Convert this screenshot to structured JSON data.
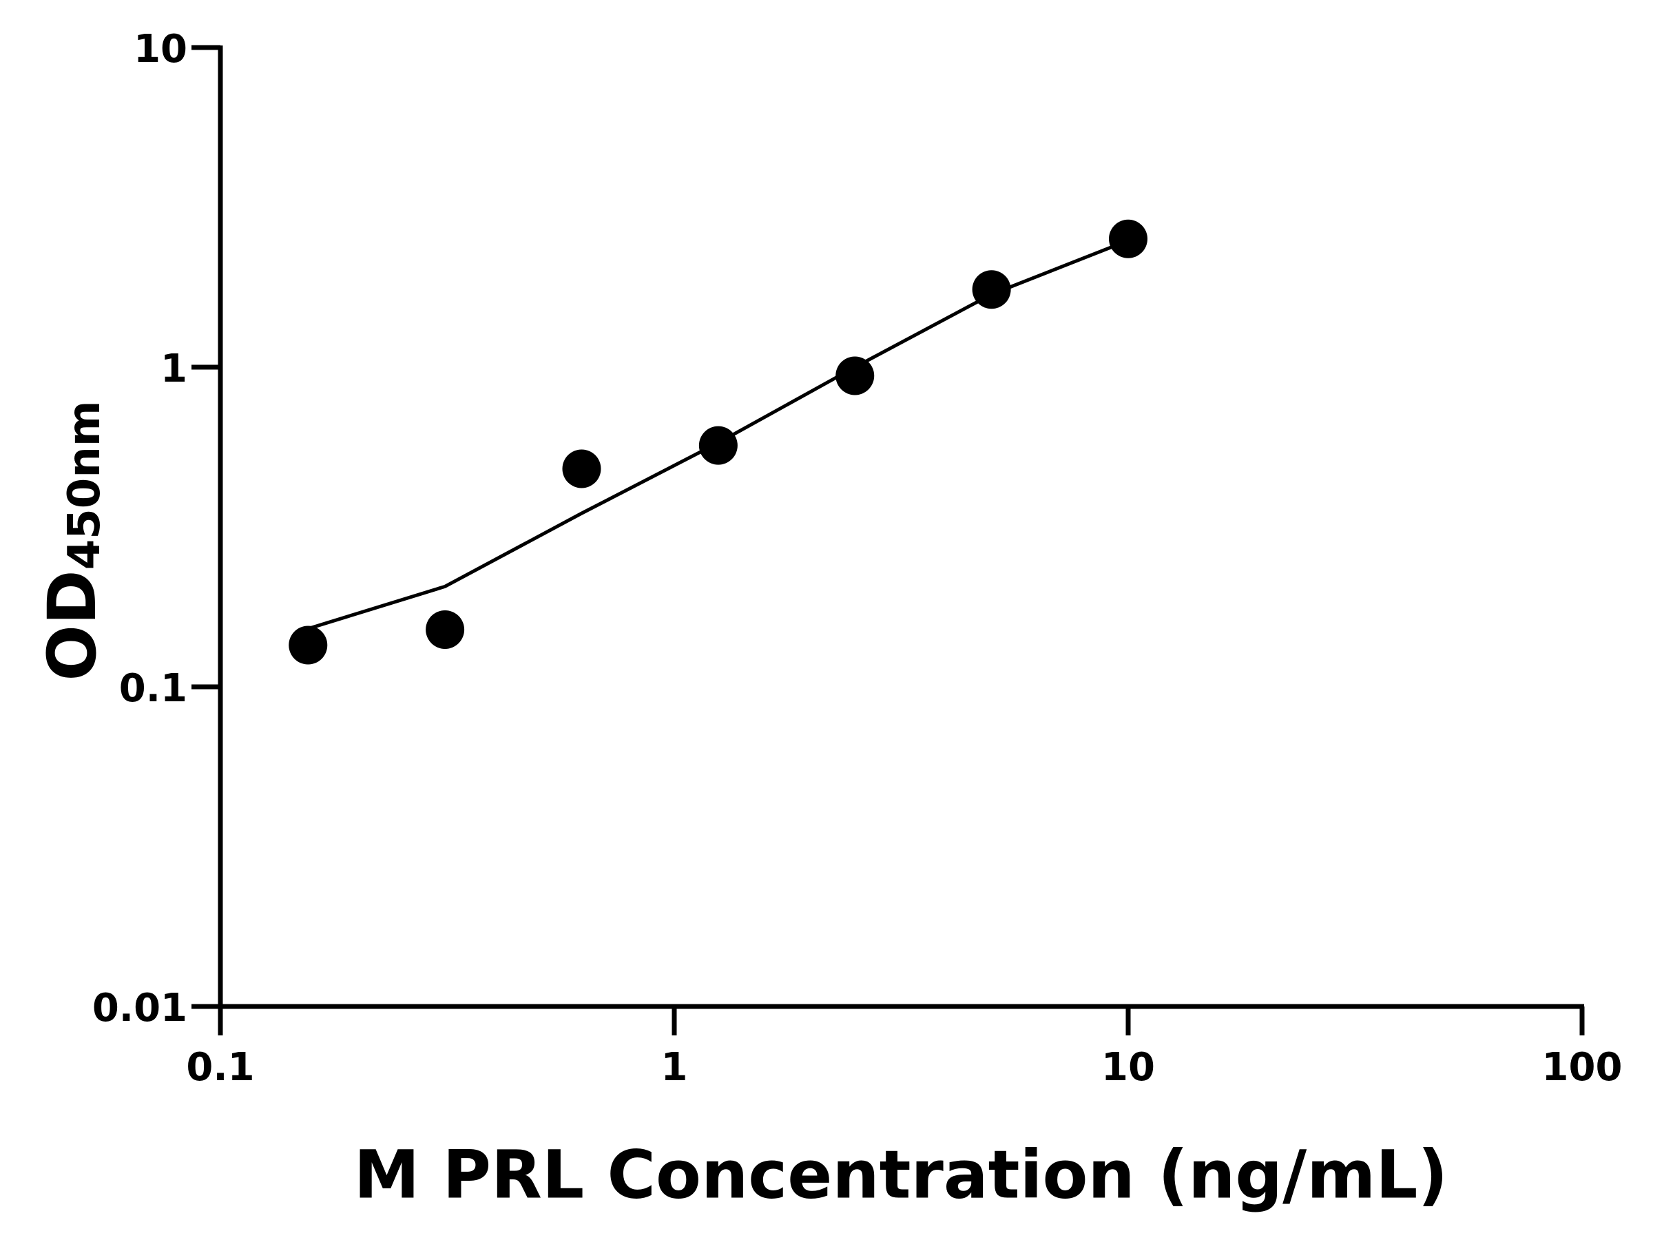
{
  "chart_data": {
    "type": "scatter",
    "xlabel": "M PRL Concentration (ng/mL)",
    "ylabel": "OD",
    "ylabel_sub": "450nm",
    "xscale": "log",
    "yscale": "log",
    "xlim": [
      0.1,
      100
    ],
    "ylim": [
      0.01,
      10
    ],
    "xticks": [
      0.1,
      1,
      10,
      100
    ],
    "yticks": [
      0.01,
      0.1,
      1,
      10
    ],
    "series": [
      {
        "type": "scatter",
        "color": "#000000",
        "x": [
          0.156,
          0.3125,
          0.625,
          1.25,
          2.5,
          5,
          10
        ],
        "values": [
          0.135,
          0.151,
          0.481,
          0.569,
          0.94,
          1.75,
          2.52
        ]
      },
      {
        "type": "line",
        "color": "#000000",
        "x": [
          0.156,
          0.3125,
          0.625,
          1.25,
          2.5,
          5,
          10
        ],
        "values": [
          0.152,
          0.206,
          0.349,
          0.58,
          1.0,
          1.69,
          2.49
        ]
      }
    ]
  }
}
